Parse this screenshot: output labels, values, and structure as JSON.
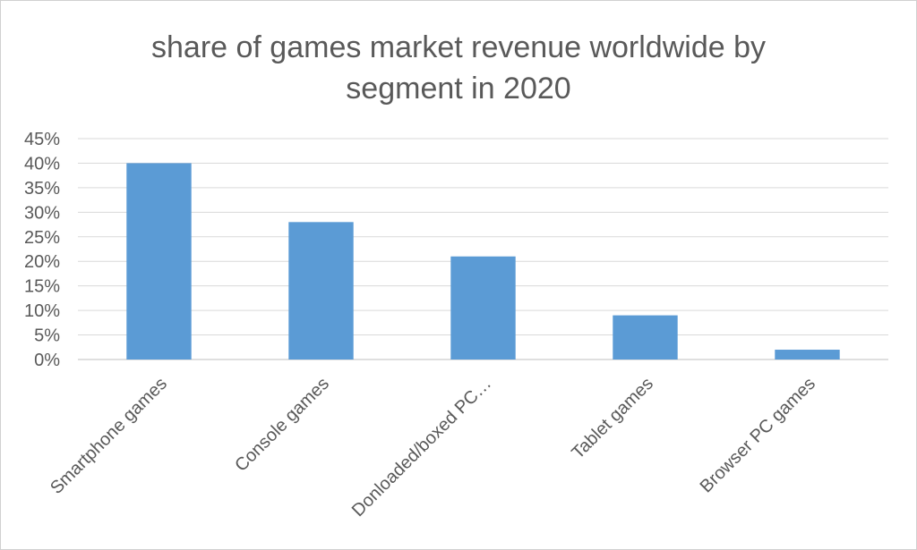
{
  "chart_data": {
    "type": "bar",
    "title": "share of games market revenue worldwide by\nsegment in 2020",
    "categories": [
      "Smartphone games",
      "Console games",
      "Donloaded/boxed PC…",
      "Tablet games",
      "Browser PC games"
    ],
    "values": [
      40,
      28,
      21,
      9,
      2
    ],
    "ylim": [
      0,
      45
    ],
    "yticks": [
      "0%",
      "5%",
      "10%",
      "15%",
      "20%",
      "25%",
      "30%",
      "35%",
      "40%",
      "45%"
    ],
    "grid": true,
    "colors": {
      "bar": "#5b9bd5",
      "grid": "#d9d9d9",
      "axis": "#bfbfbf"
    }
  }
}
